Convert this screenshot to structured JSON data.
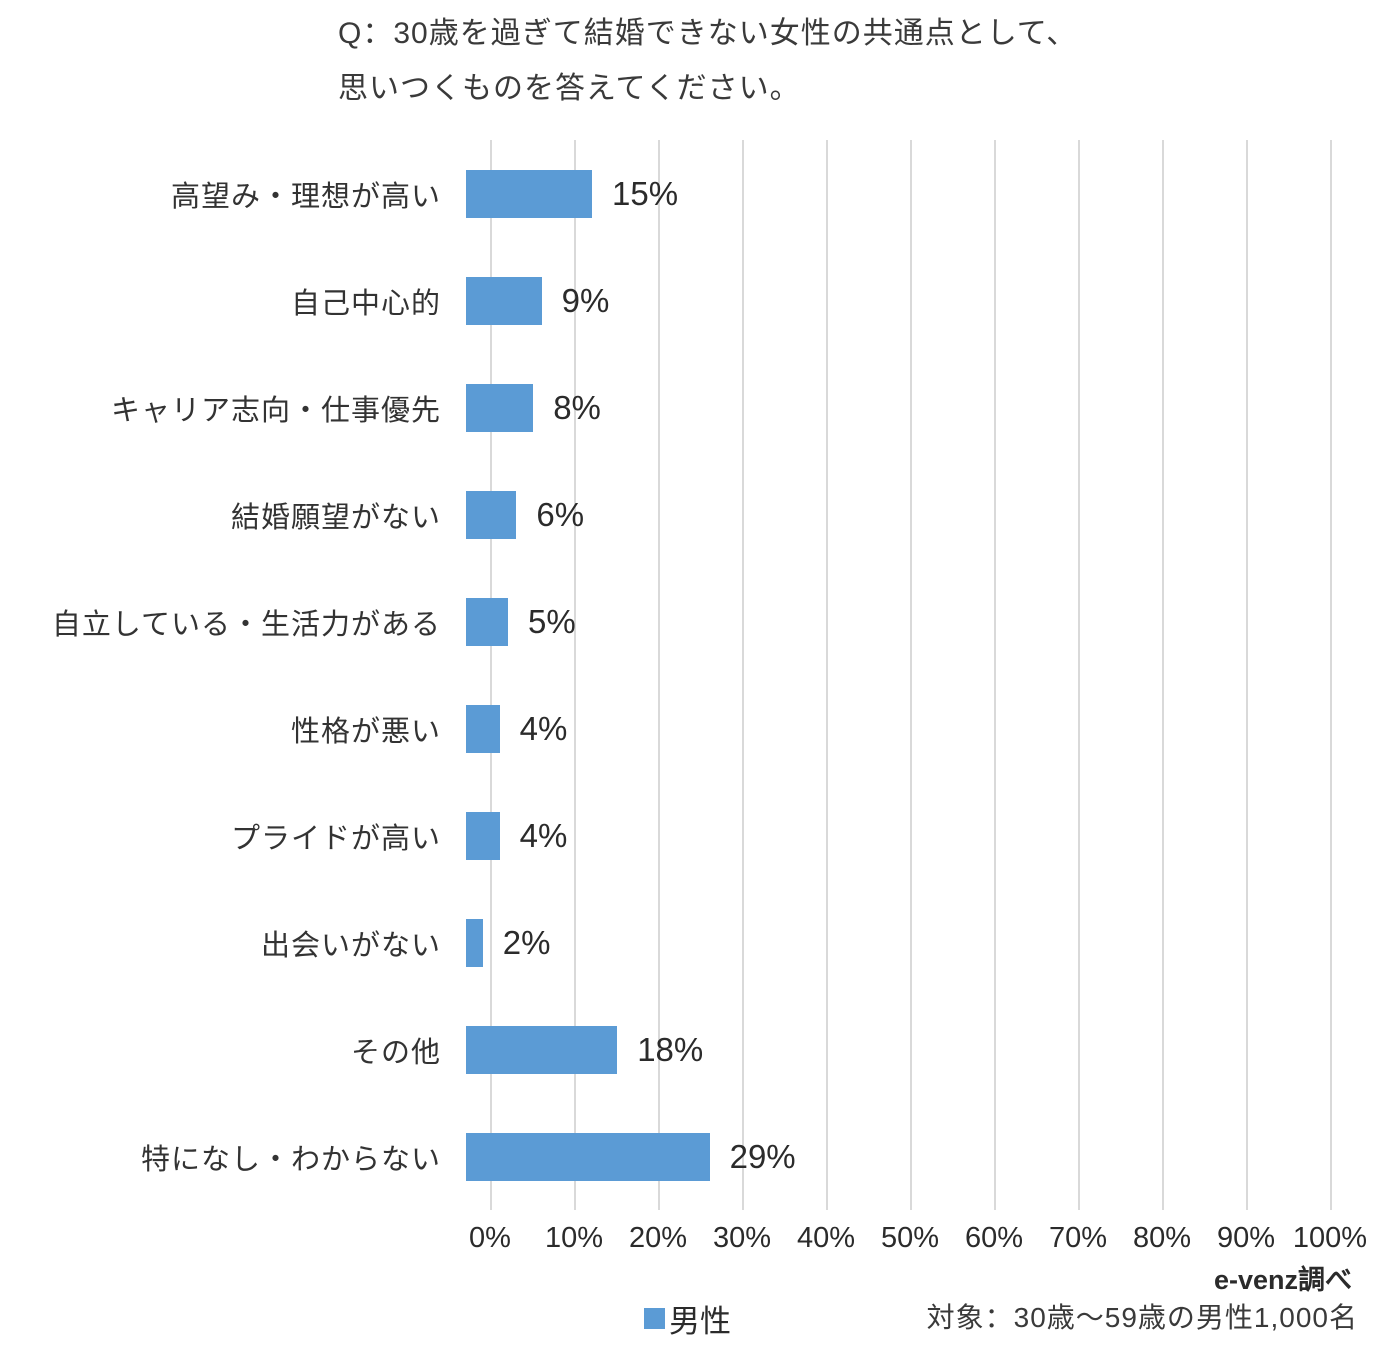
{
  "title": {
    "line1": "Q：30歳を過ぎて結婚できない女性の共通点として、",
    "line2": "思いつくものを答えてください。"
  },
  "chart_data": {
    "type": "bar",
    "orientation": "horizontal",
    "title": "Q：30歳を過ぎて結婚できない女性の共通点として、思いつくものを答えてください。",
    "categories": [
      "高望み・理想が高い",
      "自己中心的",
      "キャリア志向・仕事優先",
      "結婚願望がない",
      "自立している・生活力がある",
      "性格が悪い",
      "プライドが高い",
      "出会いがない",
      "その他",
      "特になし・わからない"
    ],
    "values": [
      15,
      9,
      8,
      6,
      5,
      4,
      4,
      2,
      18,
      29
    ],
    "value_labels": [
      "15%",
      "9%",
      "8%",
      "6%",
      "5%",
      "4%",
      "4%",
      "2%",
      "18%",
      "29%"
    ],
    "series_name": "男性",
    "xlabel": "",
    "ylabel": "",
    "xlim": [
      0,
      100
    ],
    "x_ticks": [
      "0%",
      "10%",
      "20%",
      "30%",
      "40%",
      "50%",
      "60%",
      "70%",
      "80%",
      "90%",
      "100%"
    ],
    "grid": true,
    "legend_position": "bottom",
    "bar_color": "#5B9BD5",
    "gridline_color": "#D9D9D9"
  },
  "footer": {
    "source": "e-venz調べ",
    "legend_label": "男性",
    "sample_note": "対象：30歳〜59歳の男性1,000名"
  }
}
